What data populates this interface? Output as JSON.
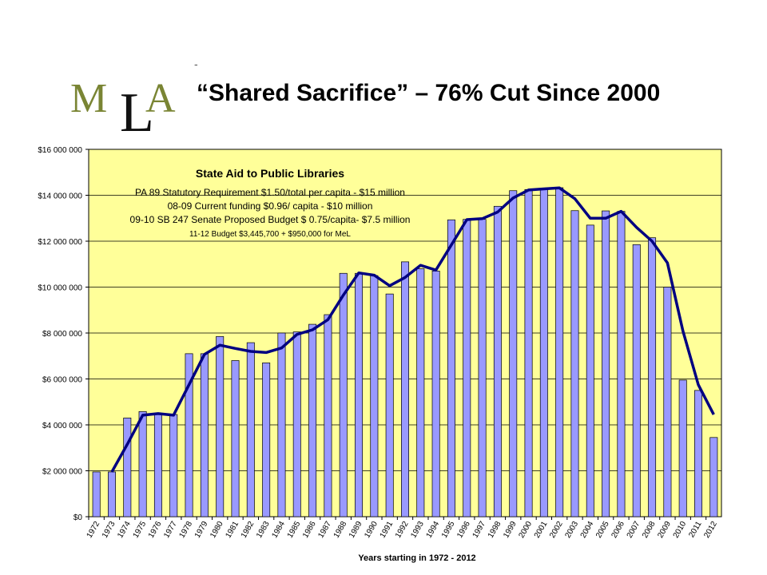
{
  "slide": {
    "title": "“Shared Sacrifice” – 76% Cut Since 2000",
    "logo_text": "MLA",
    "logo_mark": "-"
  },
  "colors": {
    "plot_bg": "#FFFF99",
    "bar_fill": "#9999FF",
    "bar_stroke": "#000000",
    "line": "#000080",
    "grid": "#000000",
    "logo_green": "#7A8534",
    "logo_black": "#111111"
  },
  "chart_data": {
    "type": "bar",
    "title": "State Aid to Public Libraries",
    "annotations": [
      "PA 89 Statutory Requirement $1.50/total per capita - $15 million",
      "08-09 Current funding $0.96/ capita - $10 million",
      "09-10 SB 247 Senate Proposed Budget $ 0.75/capita- $7.5 million",
      "11-12 Budget $3,445,700  + $950,000  for MeL"
    ],
    "xlabel": "Years starting in 1972 - 2012",
    "ylabel": "",
    "ylim": [
      0,
      16000000
    ],
    "yticks": [
      0,
      2000000,
      4000000,
      6000000,
      8000000,
      10000000,
      12000000,
      14000000,
      16000000
    ],
    "ytick_labels": [
      "$0",
      "$2 000 000",
      "$4 000 000",
      "$6 000 000",
      "$8 000 000",
      "$10 000 000",
      "$12 000 000",
      "$14 000 000",
      "$16 000 000"
    ],
    "grid": true,
    "legend": "none",
    "categories": [
      "1972",
      "1973",
      "1974",
      "1975",
      "1976",
      "1977",
      "1978",
      "1979",
      "1980",
      "1981",
      "1982",
      "1983",
      "1984",
      "1985",
      "1986",
      "1987",
      "1988",
      "1989",
      "1990",
      "1991",
      "1992",
      "1993",
      "1994",
      "1995",
      "1996",
      "1997",
      "1998",
      "1999",
      "2000",
      "2001",
      "2002",
      "2003",
      "2004",
      "2005",
      "2006",
      "2007",
      "2008",
      "2009",
      "2010",
      "2011",
      "2012"
    ],
    "values": [
      1950000,
      1950000,
      4300000,
      4580000,
      4450000,
      4450000,
      7100000,
      7100000,
      7850000,
      6800000,
      7580000,
      6700000,
      8000000,
      8050000,
      8380000,
      8800000,
      10600000,
      10600000,
      10500000,
      9700000,
      11100000,
      10800000,
      10700000,
      12930000,
      12950000,
      12950000,
      13520000,
      14200000,
      14250000,
      14300000,
      14330000,
      13330000,
      12700000,
      13320000,
      13300000,
      11850000,
      12150000,
      10000000,
      5950000,
      5500000,
      3450000
    ],
    "trend": [
      null,
      1950000,
      3150000,
      4420000,
      4490000,
      4420000,
      5750000,
      7070000,
      7470000,
      7330000,
      7200000,
      7150000,
      7350000,
      7940000,
      8140000,
      8580000,
      9650000,
      10620000,
      10520000,
      10060000,
      10420000,
      10950000,
      10740000,
      11840000,
      12940000,
      12980000,
      13270000,
      13880000,
      14230000,
      14280000,
      14320000,
      13850000,
      13000000,
      13000000,
      13300000,
      12600000,
      12000000,
      11050000,
      8100000,
      5750000,
      4450000
    ]
  }
}
